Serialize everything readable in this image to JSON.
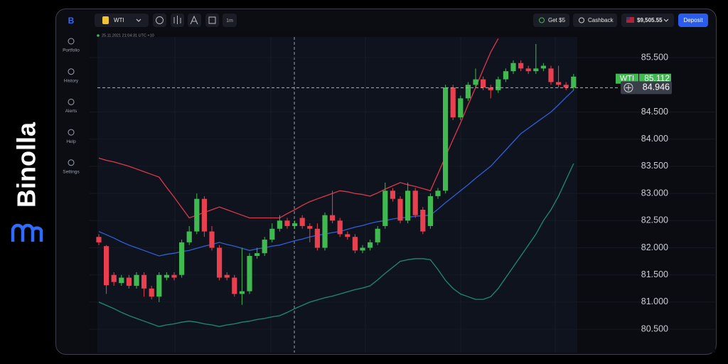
{
  "brand": "Binolla",
  "toolbar": {
    "symbol": "WTI",
    "timeframe": "1m",
    "bonus": "Get $5",
    "cashback": "Cashback",
    "balance": "$9,505.55",
    "deposit": "Deposit"
  },
  "sidebar": [
    "Portfolio",
    "History",
    "Alerts",
    "Help",
    "Settings"
  ],
  "chart_data": {
    "type": "candlestick",
    "timestamp": "25.11.2021 21:04:31 UTC +10",
    "up_color": "#3fb950",
    "down_color": "#e8404f",
    "open": [
      82.2,
      82.03,
      81.5,
      81.35,
      81.45,
      81.3,
      81.5,
      81.25,
      81.1,
      81.45,
      81.5,
      81.5,
      82.1,
      82.3,
      82.9,
      82.3,
      82.0,
      81.5,
      81.45,
      81.15,
      81.2,
      81.85,
      81.9,
      82.15,
      82.35,
      82.5,
      82.4,
      82.55,
      82.4,
      82.35,
      82.0,
      82.6,
      82.5,
      82.25,
      82.2,
      81.95,
      82.0,
      82.1,
      82.4,
      83.05,
      82.9,
      82.5,
      83.05,
      82.7,
      82.4,
      82.95,
      83.05,
      84.95,
      84.4,
      84.75,
      85.0,
      85.1,
      84.95,
      84.9,
      85.1,
      85.25,
      85.4,
      85.3,
      85.25,
      85.3,
      85.3,
      85.05,
      85.0,
      84.95
    ],
    "high": [
      82.25,
      82.05,
      81.55,
      81.5,
      81.5,
      81.55,
      81.55,
      81.3,
      81.55,
      81.55,
      81.55,
      82.15,
      82.4,
      83.0,
      82.95,
      82.4,
      82.05,
      81.55,
      81.5,
      82.0,
      81.9,
      82.0,
      82.2,
      82.45,
      82.6,
      82.55,
      82.5,
      82.6,
      82.45,
      82.45,
      82.65,
      83.05,
      82.55,
      82.3,
      82.25,
      82.05,
      82.15,
      82.4,
      83.2,
      83.1,
      82.95,
      83.2,
      83.1,
      82.75,
      83.0,
      83.1,
      85.0,
      85.0,
      84.8,
      85.05,
      85.3,
      85.15,
      85.0,
      85.15,
      85.3,
      85.45,
      85.45,
      85.35,
      85.75,
      85.4,
      85.35,
      85.35,
      85.05,
      85.2
    ],
    "low": [
      82.05,
      81.15,
      81.3,
      81.3,
      81.25,
      81.25,
      81.1,
      81.05,
      81.0,
      81.4,
      81.4,
      81.45,
      82.05,
      82.25,
      82.2,
      81.95,
      81.4,
      81.4,
      81.1,
      80.95,
      81.15,
      81.8,
      81.85,
      82.1,
      82.3,
      82.35,
      82.35,
      82.35,
      82.1,
      81.95,
      81.95,
      82.45,
      82.2,
      82.15,
      81.9,
      81.9,
      81.95,
      82.05,
      82.35,
      82.85,
      82.45,
      82.45,
      82.55,
      82.25,
      82.35,
      82.9,
      83.0,
      84.35,
      84.35,
      84.7,
      84.95,
      84.9,
      84.75,
      84.85,
      85.05,
      85.2,
      85.25,
      85.2,
      85.2,
      85.25,
      85.0,
      84.95,
      84.9,
      84.9
    ],
    "close": [
      82.1,
      81.31,
      81.37,
      81.45,
      81.3,
      81.5,
      81.25,
      81.1,
      81.5,
      81.5,
      81.45,
      82.1,
      82.3,
      82.9,
      82.3,
      82.0,
      81.45,
      81.45,
      81.15,
      81.2,
      81.85,
      81.9,
      82.15,
      82.35,
      82.5,
      82.4,
      82.45,
      82.4,
      82.35,
      82.0,
      82.6,
      82.5,
      82.25,
      82.2,
      81.95,
      82.0,
      82.1,
      82.35,
      83.05,
      82.9,
      82.5,
      83.05,
      82.6,
      82.3,
      82.95,
      83.05,
      84.95,
      84.4,
      84.75,
      85.0,
      85.1,
      84.95,
      84.9,
      85.1,
      85.25,
      85.4,
      85.3,
      85.25,
      85.3,
      85.35,
      85.05,
      85.0,
      84.95,
      85.15
    ],
    "upper_band": {
      "color": "#d9394b",
      "values": [
        83.65,
        83.61,
        83.58,
        83.54,
        83.5,
        83.45,
        83.4,
        83.35,
        83.3,
        83.11,
        82.93,
        82.74,
        82.55,
        82.6,
        82.65,
        82.7,
        82.75,
        82.7,
        82.65,
        82.6,
        82.55,
        82.55,
        82.55,
        82.55,
        82.55,
        82.63,
        82.7,
        82.78,
        82.85,
        82.9,
        82.95,
        83.0,
        83.05,
        83.03,
        83.0,
        82.98,
        82.95,
        83.01,
        83.08,
        83.14,
        83.2,
        83.16,
        83.13,
        83.09,
        83.05,
        83.36,
        83.68,
        83.99,
        84.3,
        84.63,
        84.95,
        85.28,
        85.6,
        85.85,
        null,
        null,
        null,
        null,
        null,
        null,
        null,
        null,
        null,
        null
      ]
    },
    "middle_band": {
      "color": "#2f5fd8",
      "values": [
        82.3,
        82.24,
        82.18,
        82.11,
        82.05,
        82.0,
        81.95,
        81.9,
        81.85,
        81.88,
        81.9,
        81.93,
        81.95,
        81.99,
        82.03,
        82.06,
        82.1,
        82.06,
        82.03,
        81.99,
        81.95,
        81.98,
        82.0,
        82.03,
        82.05,
        82.09,
        82.13,
        82.16,
        82.2,
        82.23,
        82.25,
        82.28,
        82.3,
        82.34,
        82.38,
        82.41,
        82.45,
        82.48,
        82.5,
        82.53,
        82.55,
        82.56,
        82.58,
        82.59,
        82.6,
        82.71,
        82.83,
        82.94,
        83.05,
        83.16,
        83.28,
        83.39,
        83.5,
        83.65,
        83.8,
        83.95,
        84.1,
        84.2,
        84.3,
        84.4,
        84.5,
        84.63,
        84.77,
        84.9
      ]
    },
    "lower_band": {
      "color": "#1f8a70",
      "values": [
        81.0,
        80.94,
        80.88,
        80.81,
        80.75,
        80.7,
        80.65,
        80.6,
        80.55,
        80.58,
        80.6,
        80.63,
        80.65,
        80.63,
        80.6,
        80.58,
        80.55,
        80.58,
        80.6,
        80.63,
        80.65,
        80.68,
        80.7,
        80.73,
        80.75,
        80.81,
        80.88,
        80.94,
        81.0,
        81.04,
        81.08,
        81.11,
        81.15,
        81.19,
        81.23,
        81.26,
        81.3,
        81.41,
        81.53,
        81.64,
        81.75,
        81.78,
        81.8,
        81.8,
        81.78,
        81.6,
        81.4,
        81.25,
        81.15,
        81.1,
        81.05,
        81.05,
        81.1,
        81.25,
        81.45,
        81.65,
        81.85,
        82.05,
        82.25,
        82.5,
        82.7,
        82.95,
        83.25,
        83.55
      ]
    },
    "ylim": [
      80.07,
      85.88
    ],
    "yticks": [
      {
        "value": 85.5,
        "label": "85.500"
      },
      {
        "value": 84.5,
        "label": "84.500"
      },
      {
        "value": 84,
        "label": "84.000"
      },
      {
        "value": 83.5,
        "label": "83.500"
      },
      {
        "value": 83,
        "label": "83.000"
      },
      {
        "value": 82.5,
        "label": "82.500"
      },
      {
        "value": 82,
        "label": "82.000"
      },
      {
        "value": 81.5,
        "label": "81.500"
      },
      {
        "value": 81,
        "label": "81.000"
      },
      {
        "value": 80.5,
        "label": "80.500"
      }
    ],
    "grid": true,
    "last_symbol": "WTI",
    "last_price": 85.112,
    "crosshair_price": 84.946
  }
}
